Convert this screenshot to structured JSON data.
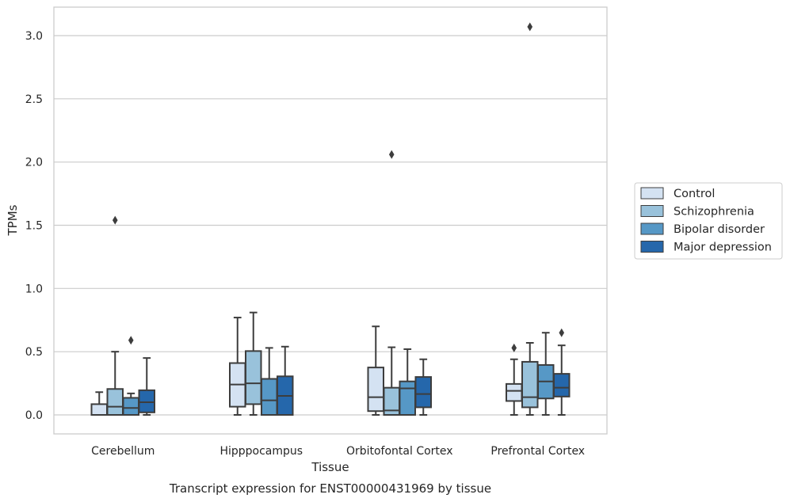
{
  "chart_data": {
    "type": "box",
    "title": "",
    "caption": "Transcript expression for ENST00000431969 by tissue",
    "xlabel": "Tissue",
    "ylabel": "TPMs",
    "ylim": [
      -0.15,
      3.23
    ],
    "yticks": [
      0.0,
      0.5,
      1.0,
      1.5,
      2.0,
      2.5,
      3.0
    ],
    "ytick_labels": [
      "0.0",
      "0.5",
      "1.0",
      "1.5",
      "2.0",
      "2.5",
      "3.0"
    ],
    "categories": [
      "Cerebellum",
      "Hipppocampus",
      "Orbitofontal Cortex",
      "Prefrontal Cortex"
    ],
    "grid": "horizontal",
    "legend_position": "right",
    "series": [
      {
        "name": "Control",
        "color": "#d4e2f2",
        "boxes": [
          {
            "whislo": 0.0,
            "q1": 0.0,
            "med": 0.0,
            "q3": 0.085,
            "whishi": 0.18,
            "fliers": []
          },
          {
            "whislo": 0.0,
            "q1": 0.065,
            "med": 0.24,
            "q3": 0.41,
            "whishi": 0.77,
            "fliers": []
          },
          {
            "whislo": 0.0,
            "q1": 0.03,
            "med": 0.14,
            "q3": 0.375,
            "whishi": 0.7,
            "fliers": []
          },
          {
            "whislo": 0.0,
            "q1": 0.11,
            "med": 0.19,
            "q3": 0.245,
            "whishi": 0.44,
            "fliers": [
              0.53
            ]
          }
        ]
      },
      {
        "name": "Schizophrenia",
        "color": "#99c2db",
        "boxes": [
          {
            "whislo": 0.0,
            "q1": 0.0,
            "med": 0.065,
            "q3": 0.205,
            "whishi": 0.5,
            "fliers": [
              1.54
            ]
          },
          {
            "whislo": 0.0,
            "q1": 0.085,
            "med": 0.25,
            "q3": 0.505,
            "whishi": 0.81,
            "fliers": []
          },
          {
            "whislo": 0.0,
            "q1": 0.0,
            "med": 0.035,
            "q3": 0.215,
            "whishi": 0.535,
            "fliers": [
              2.06
            ]
          },
          {
            "whislo": 0.0,
            "q1": 0.06,
            "med": 0.14,
            "q3": 0.42,
            "whishi": 0.57,
            "fliers": [
              3.07
            ]
          }
        ]
      },
      {
        "name": "Bipolar disorder",
        "color": "#5698c6",
        "boxes": [
          {
            "whislo": 0.0,
            "q1": 0.0,
            "med": 0.055,
            "q3": 0.135,
            "whishi": 0.17,
            "fliers": [
              0.59
            ]
          },
          {
            "whislo": 0.0,
            "q1": 0.0,
            "med": 0.115,
            "q3": 0.285,
            "whishi": 0.53,
            "fliers": []
          },
          {
            "whislo": 0.0,
            "q1": 0.0,
            "med": 0.21,
            "q3": 0.265,
            "whishi": 0.52,
            "fliers": []
          },
          {
            "whislo": 0.0,
            "q1": 0.13,
            "med": 0.265,
            "q3": 0.395,
            "whishi": 0.65,
            "fliers": []
          }
        ]
      },
      {
        "name": "Major depression",
        "color": "#2567ab",
        "boxes": [
          {
            "whislo": 0.0,
            "q1": 0.02,
            "med": 0.1,
            "q3": 0.195,
            "whishi": 0.45,
            "fliers": []
          },
          {
            "whislo": 0.0,
            "q1": 0.0,
            "med": 0.15,
            "q3": 0.305,
            "whishi": 0.54,
            "fliers": []
          },
          {
            "whislo": 0.0,
            "q1": 0.06,
            "med": 0.165,
            "q3": 0.3,
            "whishi": 0.44,
            "fliers": []
          },
          {
            "whislo": 0.0,
            "q1": 0.145,
            "med": 0.215,
            "q3": 0.325,
            "whishi": 0.55,
            "fliers": [
              0.65
            ]
          }
        ]
      }
    ]
  }
}
